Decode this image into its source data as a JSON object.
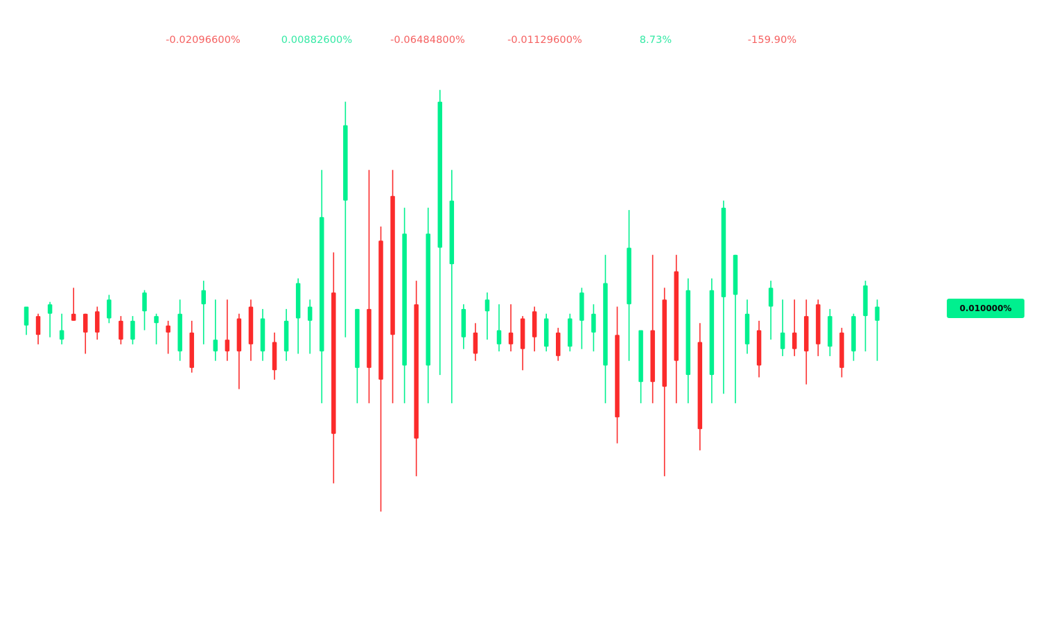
{
  "colors": {
    "up": "#00f08f",
    "down": "#fb2b2b",
    "up_text": "#33e9a4",
    "down_text": "#f56060",
    "background": "#ffffff"
  },
  "top_labels": [
    {
      "text": "-0.02096600%",
      "direction": "down"
    },
    {
      "text": "0.00882600%",
      "direction": "up"
    },
    {
      "text": "-0.06484800%",
      "direction": "down"
    },
    {
      "text": "-0.01129600%",
      "direction": "down"
    },
    {
      "text": "8.73%",
      "direction": "up"
    },
    {
      "text": "-159.90%",
      "direction": "down"
    }
  ],
  "current_value_label": "0.010000%",
  "chart_data": {
    "type": "candlestick",
    "title": "",
    "xlabel": "",
    "ylabel": "",
    "grid": false,
    "ylim": [
      -0.1,
      0.1
    ],
    "candles": [
      {
        "o": -0.0055,
        "h": 0.0015,
        "l": -0.0095,
        "c": 0.0025,
        "dir": "up"
      },
      {
        "o": -0.0015,
        "h": -0.0005,
        "l": -0.0135,
        "c": -0.0095,
        "dir": "down"
      },
      {
        "o": -0.0005,
        "h": 0.0045,
        "l": -0.0105,
        "c": 0.0035,
        "dir": "up"
      },
      {
        "o": -0.0115,
        "h": -0.0005,
        "l": -0.0135,
        "c": -0.0075,
        "dir": "up"
      },
      {
        "o": -0.0005,
        "h": 0.0105,
        "l": -0.0035,
        "c": -0.0035,
        "dir": "down"
      },
      {
        "o": -0.0005,
        "h": -0.0005,
        "l": -0.0175,
        "c": -0.0085,
        "dir": "down"
      },
      {
        "o": 0.0005,
        "h": 0.0025,
        "l": -0.0115,
        "c": -0.0085,
        "dir": "down"
      },
      {
        "o": -0.0025,
        "h": 0.0075,
        "l": -0.0045,
        "c": 0.0055,
        "dir": "up"
      },
      {
        "o": -0.0035,
        "h": -0.0015,
        "l": -0.0135,
        "c": -0.0115,
        "dir": "down"
      },
      {
        "o": -0.0115,
        "h": -0.0015,
        "l": -0.0135,
        "c": -0.0035,
        "dir": "up"
      },
      {
        "o": 0.0005,
        "h": 0.0095,
        "l": -0.0075,
        "c": 0.0085,
        "dir": "up"
      },
      {
        "o": -0.0045,
        "h": -0.0005,
        "l": -0.0135,
        "c": -0.0015,
        "dir": "up"
      },
      {
        "o": -0.0055,
        "h": -0.0035,
        "l": -0.0175,
        "c": -0.0085,
        "dir": "down"
      },
      {
        "o": -0.0165,
        "h": 0.0055,
        "l": -0.0205,
        "c": -0.0005,
        "dir": "up"
      },
      {
        "o": -0.0085,
        "h": -0.0035,
        "l": -0.0255,
        "c": -0.0235,
        "dir": "down"
      },
      {
        "o": 0.0035,
        "h": 0.0135,
        "l": -0.0135,
        "c": 0.0095,
        "dir": "up"
      },
      {
        "o": -0.0165,
        "h": 0.0055,
        "l": -0.0205,
        "c": -0.0115,
        "dir": "up"
      },
      {
        "o": -0.0115,
        "h": 0.0055,
        "l": -0.0205,
        "c": -0.0165,
        "dir": "down"
      },
      {
        "o": -0.0025,
        "h": -0.0005,
        "l": -0.0325,
        "c": -0.0165,
        "dir": "down"
      },
      {
        "o": 0.0025,
        "h": 0.0055,
        "l": -0.0205,
        "c": -0.0135,
        "dir": "down"
      },
      {
        "o": -0.0165,
        "h": 0.0015,
        "l": -0.0205,
        "c": -0.0025,
        "dir": "up"
      },
      {
        "o": -0.0125,
        "h": -0.0085,
        "l": -0.0285,
        "c": -0.0245,
        "dir": "down"
      },
      {
        "o": -0.0165,
        "h": 0.0015,
        "l": -0.0205,
        "c": -0.0035,
        "dir": "up"
      },
      {
        "o": -0.0025,
        "h": 0.0145,
        "l": -0.0175,
        "c": 0.0125,
        "dir": "up"
      },
      {
        "o": -0.0035,
        "h": 0.0055,
        "l": -0.0175,
        "c": 0.0025,
        "dir": "up"
      },
      {
        "o": -0.0165,
        "h": 0.0605,
        "l": -0.0385,
        "c": 0.0405,
        "dir": "up"
      },
      {
        "o": 0.0085,
        "h": 0.0255,
        "l": -0.0725,
        "c": -0.0515,
        "dir": "down"
      },
      {
        "o": 0.0475,
        "h": 0.0895,
        "l": -0.0105,
        "c": 0.0795,
        "dir": "up"
      },
      {
        "o": -0.0235,
        "h": 0.0015,
        "l": -0.0385,
        "c": 0.0015,
        "dir": "up"
      },
      {
        "o": 0.0015,
        "h": 0.0605,
        "l": -0.0385,
        "c": -0.0235,
        "dir": "down"
      },
      {
        "o": 0.0305,
        "h": 0.0365,
        "l": -0.0845,
        "c": -0.0285,
        "dir": "down"
      },
      {
        "o": 0.0495,
        "h": 0.0605,
        "l": -0.0385,
        "c": -0.0095,
        "dir": "down"
      },
      {
        "o": -0.0225,
        "h": 0.0445,
        "l": -0.0385,
        "c": 0.0335,
        "dir": "up"
      },
      {
        "o": 0.0035,
        "h": 0.0135,
        "l": -0.0695,
        "c": -0.0535,
        "dir": "down"
      },
      {
        "o": -0.0225,
        "h": 0.0445,
        "l": -0.0385,
        "c": 0.0335,
        "dir": "up"
      },
      {
        "o": 0.0275,
        "h": 0.0945,
        "l": -0.0265,
        "c": 0.0895,
        "dir": "up"
      },
      {
        "o": 0.0205,
        "h": 0.0605,
        "l": -0.0385,
        "c": 0.0475,
        "dir": "up"
      },
      {
        "o": -0.0105,
        "h": 0.0035,
        "l": -0.0155,
        "c": 0.0015,
        "dir": "up"
      },
      {
        "o": -0.0085,
        "h": -0.0045,
        "l": -0.0205,
        "c": -0.0175,
        "dir": "down"
      },
      {
        "o": 0.0005,
        "h": 0.0085,
        "l": -0.0115,
        "c": 0.0055,
        "dir": "up"
      },
      {
        "o": -0.0135,
        "h": 0.0035,
        "l": -0.0165,
        "c": -0.0075,
        "dir": "up"
      },
      {
        "o": -0.0085,
        "h": 0.0035,
        "l": -0.0165,
        "c": -0.0135,
        "dir": "down"
      },
      {
        "o": -0.0025,
        "h": -0.0015,
        "l": -0.0245,
        "c": -0.0155,
        "dir": "down"
      },
      {
        "o": 0.0005,
        "h": 0.0025,
        "l": -0.0165,
        "c": -0.0105,
        "dir": "down"
      },
      {
        "o": -0.0145,
        "h": -0.0005,
        "l": -0.0165,
        "c": -0.0025,
        "dir": "up"
      },
      {
        "o": -0.0085,
        "h": -0.0065,
        "l": -0.0205,
        "c": -0.0185,
        "dir": "down"
      },
      {
        "o": -0.0145,
        "h": -0.0005,
        "l": -0.0165,
        "c": -0.0025,
        "dir": "up"
      },
      {
        "o": -0.0035,
        "h": 0.0105,
        "l": -0.0155,
        "c": 0.0085,
        "dir": "up"
      },
      {
        "o": -0.0085,
        "h": 0.0035,
        "l": -0.0165,
        "c": -0.0005,
        "dir": "up"
      },
      {
        "o": -0.0225,
        "h": 0.0245,
        "l": -0.0385,
        "c": 0.0125,
        "dir": "up"
      },
      {
        "o": -0.0095,
        "h": 0.0025,
        "l": -0.0555,
        "c": -0.0445,
        "dir": "down"
      },
      {
        "o": 0.0035,
        "h": 0.0435,
        "l": -0.0205,
        "c": 0.0275,
        "dir": "up"
      },
      {
        "o": -0.0295,
        "h": -0.0095,
        "l": -0.0385,
        "c": -0.0075,
        "dir": "up"
      },
      {
        "o": -0.0075,
        "h": 0.0245,
        "l": -0.0385,
        "c": -0.0295,
        "dir": "down"
      },
      {
        "o": 0.0055,
        "h": 0.0105,
        "l": -0.0695,
        "c": -0.0315,
        "dir": "down"
      },
      {
        "o": 0.0175,
        "h": 0.0245,
        "l": -0.0385,
        "c": -0.0205,
        "dir": "down"
      },
      {
        "o": -0.0265,
        "h": 0.0145,
        "l": -0.0385,
        "c": 0.0095,
        "dir": "up"
      },
      {
        "o": -0.0125,
        "h": -0.0045,
        "l": -0.0585,
        "c": -0.0495,
        "dir": "down"
      },
      {
        "o": -0.0265,
        "h": 0.0145,
        "l": -0.0385,
        "c": 0.0095,
        "dir": "up"
      },
      {
        "o": 0.0065,
        "h": 0.0475,
        "l": -0.0345,
        "c": 0.0445,
        "dir": "up"
      },
      {
        "o": 0.0075,
        "h": 0.0245,
        "l": -0.0385,
        "c": 0.0245,
        "dir": "up"
      },
      {
        "o": -0.0135,
        "h": 0.0055,
        "l": -0.0175,
        "c": -0.0005,
        "dir": "up"
      },
      {
        "o": -0.0075,
        "h": -0.0035,
        "l": -0.0275,
        "c": -0.0225,
        "dir": "down"
      },
      {
        "o": 0.0105,
        "h": 0.0135,
        "l": -0.0115,
        "c": 0.0025,
        "dir": "up"
      },
      {
        "o": -0.0155,
        "h": 0.0055,
        "l": -0.0185,
        "c": -0.0085,
        "dir": "up"
      },
      {
        "o": -0.0085,
        "h": 0.0055,
        "l": -0.0185,
        "c": -0.0155,
        "dir": "down"
      },
      {
        "o": -0.0015,
        "h": 0.0055,
        "l": -0.0305,
        "c": -0.0165,
        "dir": "down"
      },
      {
        "o": 0.0035,
        "h": 0.0055,
        "l": -0.0185,
        "c": -0.0135,
        "dir": "down"
      },
      {
        "o": -0.0145,
        "h": 0.0015,
        "l": -0.0185,
        "c": -0.0015,
        "dir": "up"
      },
      {
        "o": -0.0085,
        "h": -0.0065,
        "l": -0.0275,
        "c": -0.0235,
        "dir": "down"
      },
      {
        "o": -0.0165,
        "h": -0.0005,
        "l": -0.0205,
        "c": -0.0015,
        "dir": "up"
      },
      {
        "o": -0.0015,
        "h": 0.0135,
        "l": -0.0165,
        "c": 0.0115,
        "dir": "up"
      },
      {
        "o": -0.0035,
        "h": 0.0055,
        "l": -0.0205,
        "c": 0.0025,
        "dir": "up"
      }
    ]
  }
}
